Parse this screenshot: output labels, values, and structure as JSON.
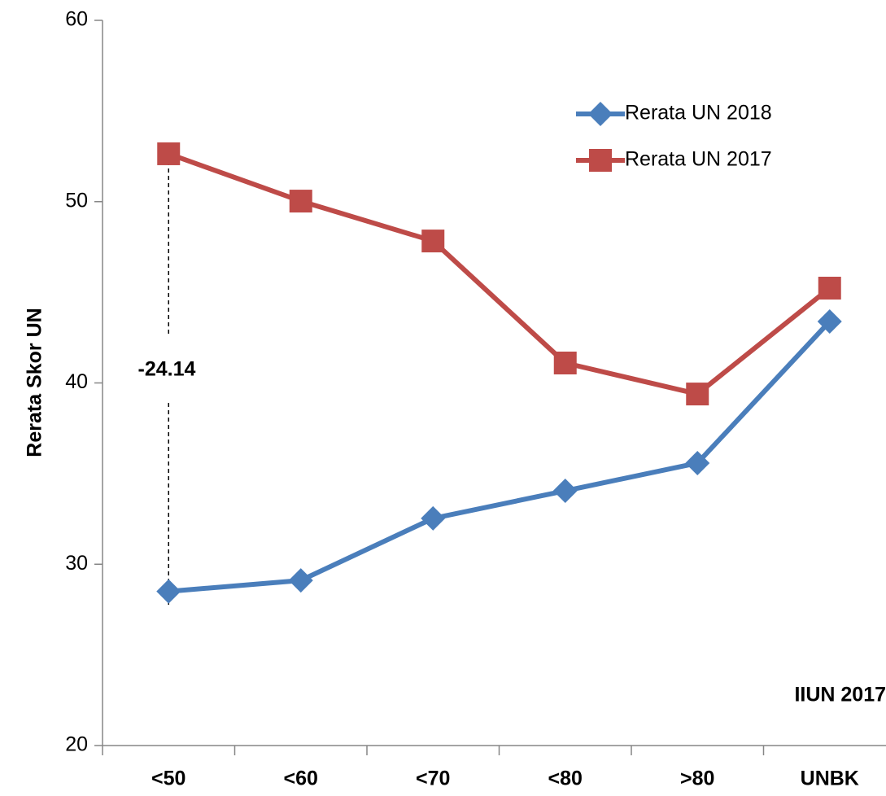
{
  "chart_data": {
    "type": "line",
    "ylabel": "Rerata Skor UN",
    "categories": [
      "<50",
      "<60",
      "<70",
      "<80",
      ">80",
      "UNBK"
    ],
    "series": [
      {
        "name": "Rerata UN 2018",
        "color": "#4a7ebb",
        "marker": "diamond",
        "values": [
          28.5,
          29.11,
          32.53,
          34.05,
          35.58,
          43.39
        ]
      },
      {
        "name": "Rerata UN 2017",
        "color": "#be4b48",
        "marker": "square",
        "values": [
          52.64,
          50.03,
          47.83,
          41.1,
          39.39,
          45.23
        ]
      }
    ],
    "ylim": [
      20,
      60
    ],
    "yticks": [
      20,
      30,
      40,
      50,
      60
    ],
    "legend": "upper right",
    "annotations": [
      "-24.14",
      "IIUN 2017"
    ]
  }
}
